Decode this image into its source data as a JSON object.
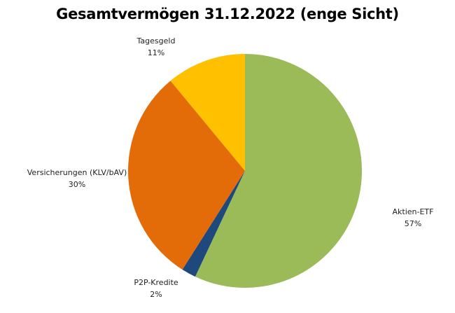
{
  "chart_data": {
    "type": "pie",
    "title": "Gesamtvermögen 31.12.2022 (enge Sicht)",
    "start_angle": "top, clockwise",
    "slices": [
      {
        "label": "Aktien-ETF",
        "value": 57,
        "display": "57%",
        "color": "#9BBB59"
      },
      {
        "label": "P2P-Kredite",
        "value": 2,
        "display": "2%",
        "color": "#1F497D"
      },
      {
        "label": "Versicherungen (KLV/bAV)",
        "value": 30,
        "display": "30%",
        "color": "#E36C09"
      },
      {
        "label": "Tagesgeld",
        "value": 11,
        "display": "11%",
        "color": "#FFC000"
      }
    ]
  }
}
